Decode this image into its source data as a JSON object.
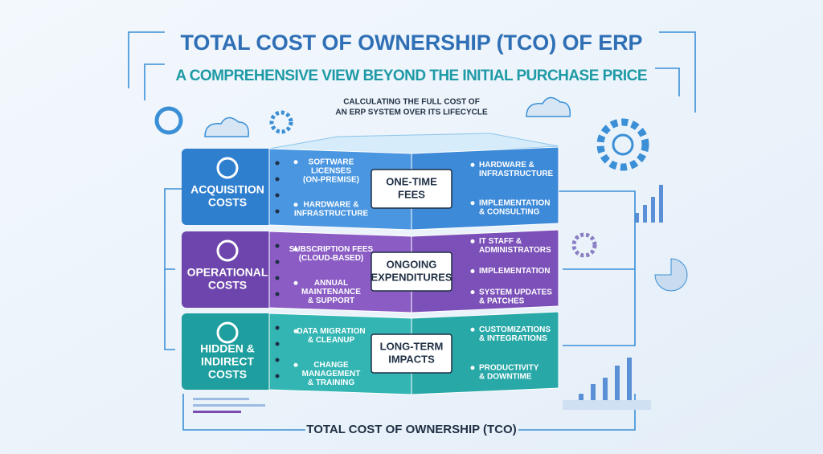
{
  "header": {
    "title": "TOTAL COST OF OWNERSHIP (TCO) OF ERP",
    "subtitle": "A COMPREHENSIVE VIEW BEYOND THE INITIAL PURCHASE PRICE",
    "caption": [
      "CALCULATING THE FULL COST OF",
      "AN ERP SYSTEM OVER ITS LIFECYCLE"
    ]
  },
  "layers": [
    {
      "name": [
        "ACQUISITION",
        "COSTS"
      ],
      "center": [
        "ONE-TIME",
        "FEES"
      ],
      "left": [
        [
          "SOFTWARE",
          "LICENSES",
          "(ON-PREMISE)"
        ],
        [
          "HARDWARE &",
          "INFRASTRUCTURE"
        ]
      ],
      "right": [
        [
          "HARDWARE &",
          "INFRASTRUCTURE"
        ],
        [
          "IMPLEMENTATION",
          "& CONSULTING"
        ]
      ]
    },
    {
      "name": [
        "OPERATIONAL",
        "COSTS"
      ],
      "center": [
        "ONGOING",
        "EXPENDITURES"
      ],
      "left": [
        [
          "SUBSCRIPTION FEES",
          "(CLOUD-BASED)"
        ],
        [
          "ANNUAL",
          "MAINTENANCE",
          "& SUPPORT"
        ]
      ],
      "right": [
        [
          "IT STAFF &",
          "ADMINISTRATORS"
        ],
        [
          "IMPLEMENTATION"
        ],
        [
          "SYSTEM UPDATES",
          "& PATCHES"
        ]
      ]
    },
    {
      "name": [
        "HIDDEN &",
        "INDIRECT",
        "COSTS"
      ],
      "center": [
        "LONG-TERM",
        "IMPACTS"
      ],
      "left": [
        [
          "DATA MIGRATION",
          "& CLEANUP"
        ],
        [
          "CHANGE",
          "MANAGEMENT",
          "& TRAINING"
        ]
      ],
      "right": [
        [
          "CUSTOMIZATIONS",
          "& INTEGRATIONS"
        ],
        [
          "PRODUCTIVITY",
          "& DOWNTIME"
        ]
      ]
    }
  ],
  "footer": "TOTAL COST OF OWNERSHIP (TCO)"
}
